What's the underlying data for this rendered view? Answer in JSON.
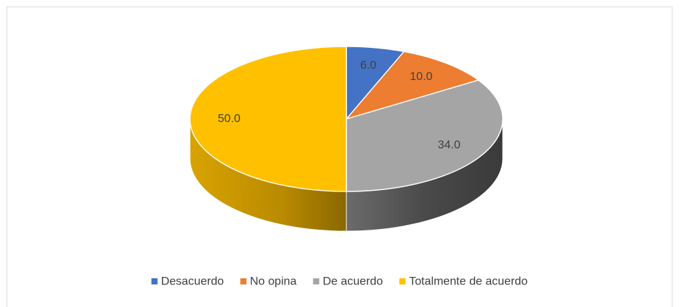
{
  "chart_data": {
    "type": "pie3d",
    "categories": [
      "Desacuerdo",
      "No opina",
      "De acuerdo",
      "Totalmente de acuerdo"
    ],
    "values": [
      6,
      10,
      34,
      50
    ],
    "value_labels": [
      "6.0",
      "10.0",
      "34.0",
      "50.0"
    ],
    "colors": [
      "#4472c4",
      "#ed7d31",
      "#a5a5a5",
      "#ffc000"
    ],
    "legend": "bottom"
  }
}
